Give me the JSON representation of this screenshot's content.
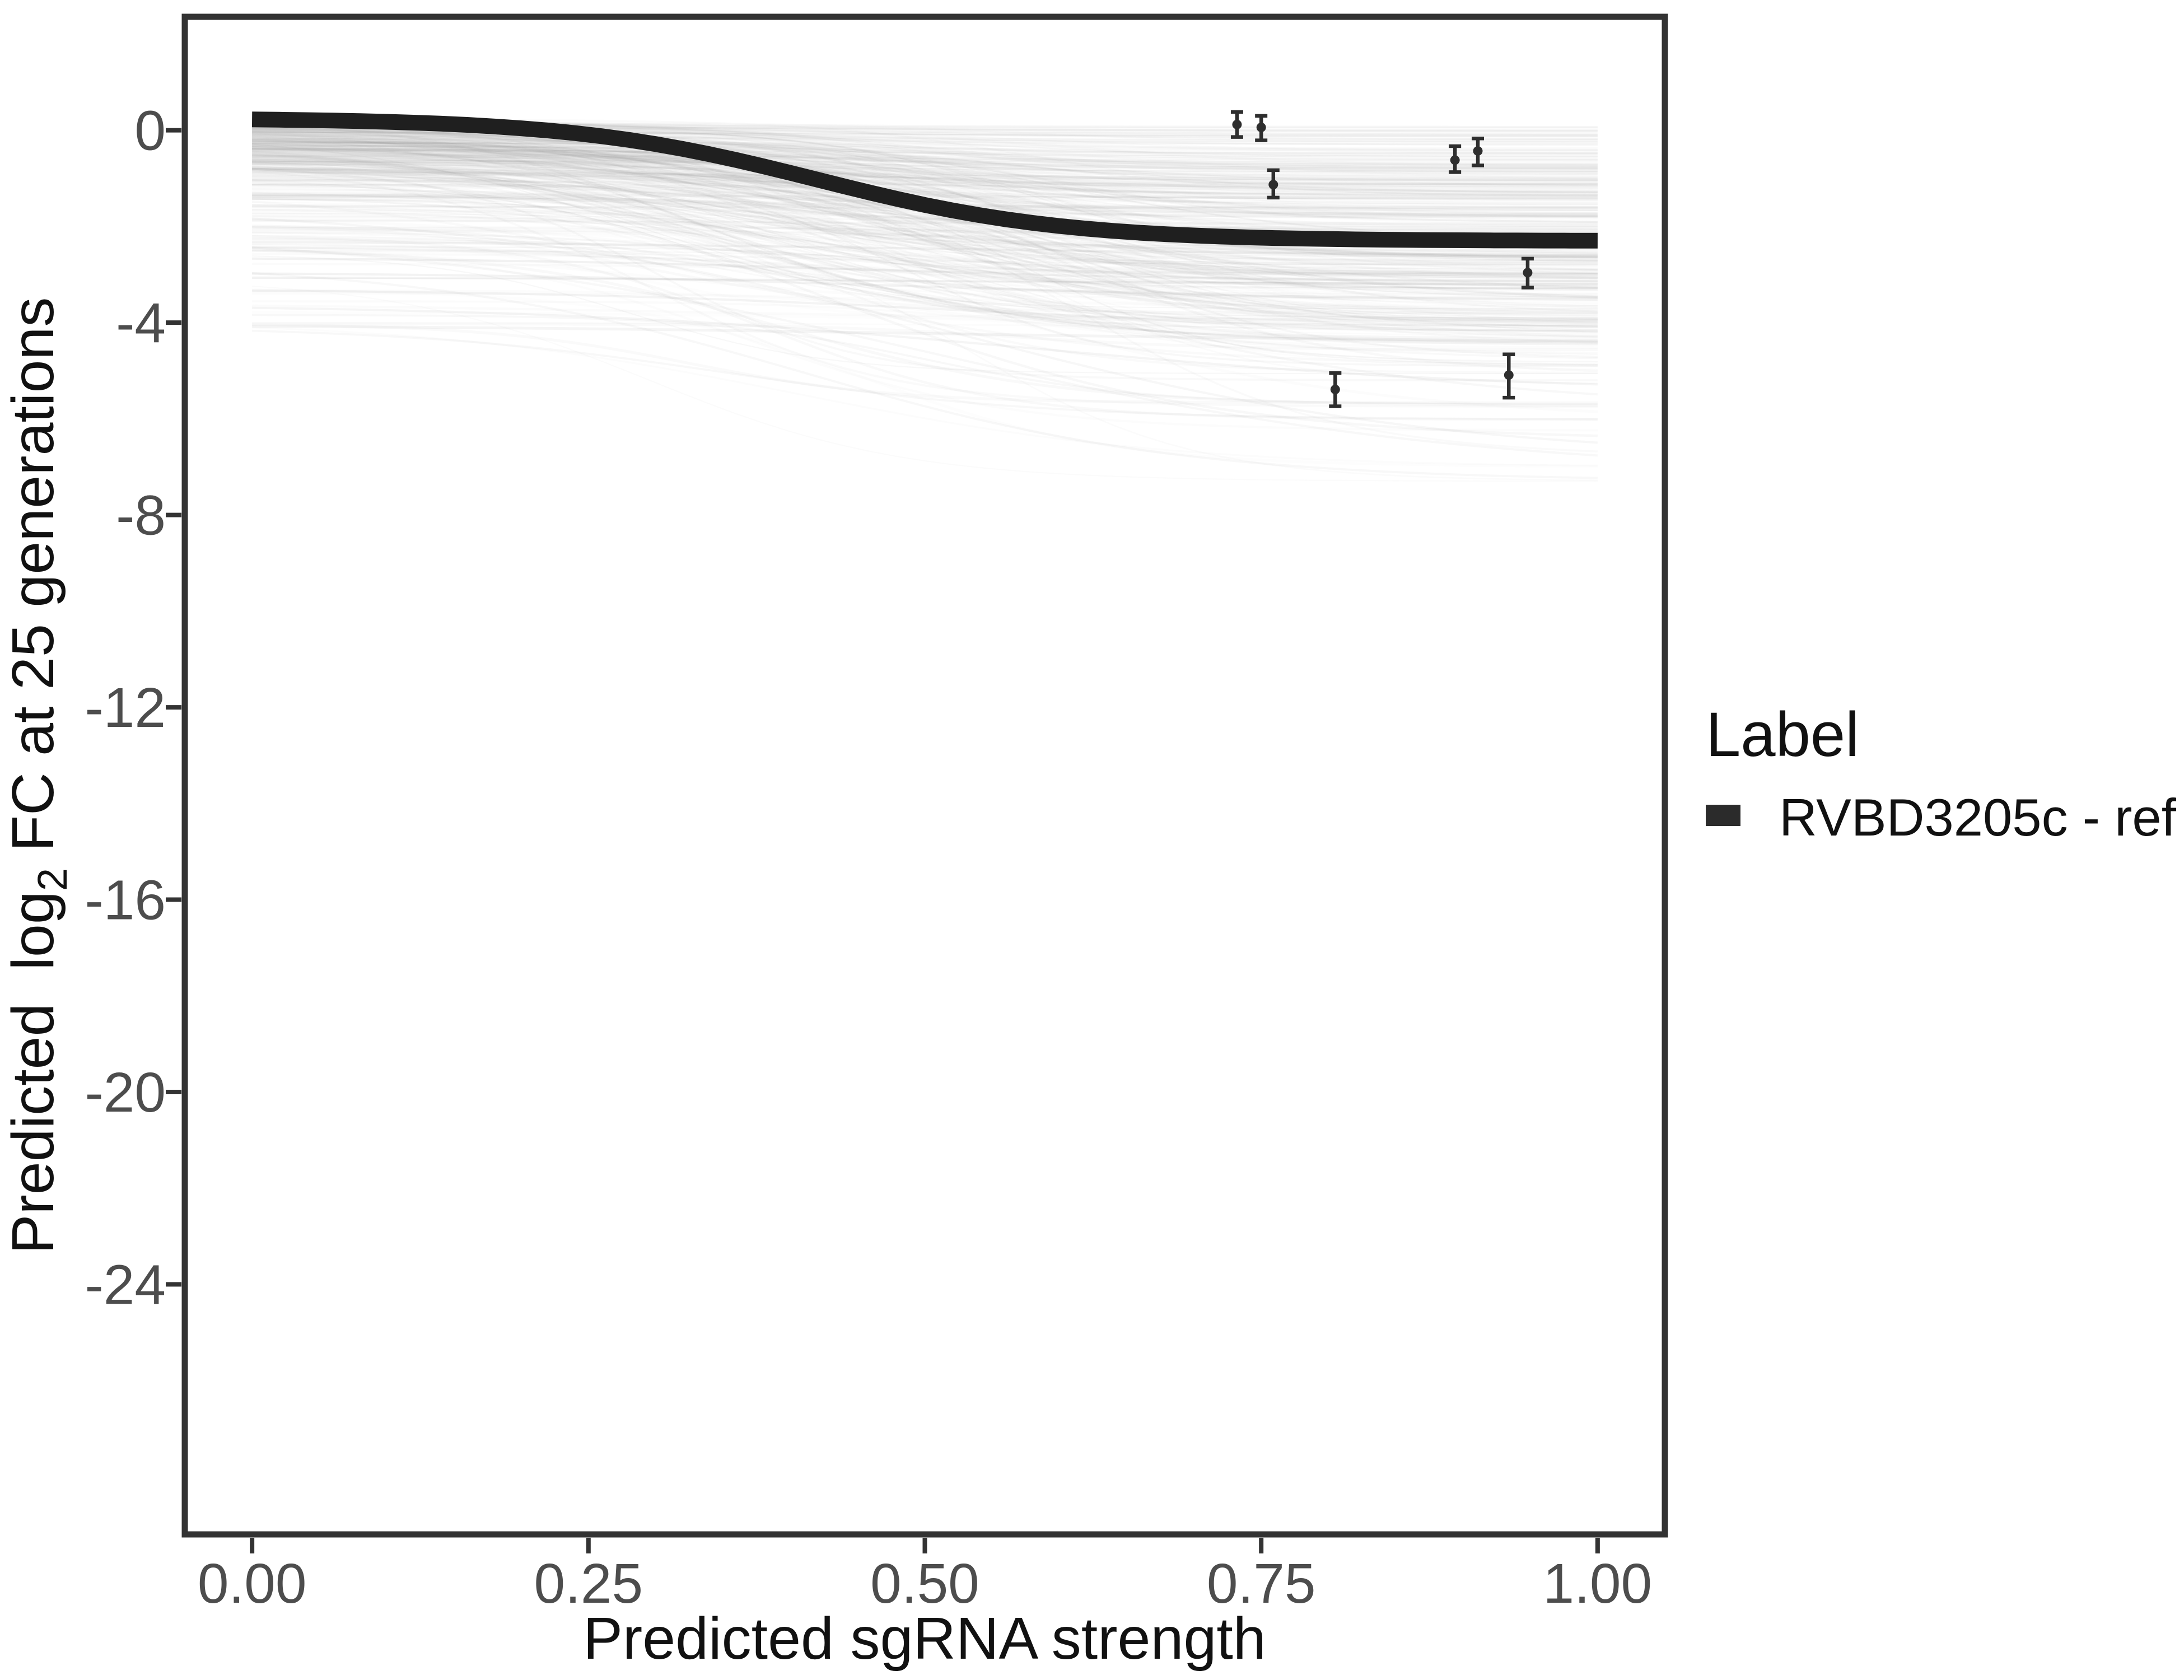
{
  "chart_data": {
    "type": "line",
    "title": "",
    "xlabel": "Predicted sgRNA strength",
    "ylabel": {
      "prefix": "Predicted  log",
      "sub": "2",
      "suffix": " FC at 25 generations"
    },
    "xlim": [
      -0.05,
      1.05
    ],
    "ylim": [
      -29.2,
      2.36
    ],
    "grid": "off",
    "panel_border_color": "#333333",
    "x_ticks": {
      "values": [
        0.0,
        0.25,
        0.5,
        0.75,
        1.0
      ],
      "labels": [
        "0.00",
        "0.25",
        "0.50",
        "0.75",
        "1.00"
      ]
    },
    "y_ticks": {
      "values": [
        0,
        -4,
        -8,
        -12,
        -16,
        -20,
        -24
      ],
      "labels": [
        "0",
        "-4",
        "-8",
        "-12",
        "-16",
        "-20",
        "-24"
      ]
    },
    "legend": {
      "title": "Label",
      "position": "right",
      "entries": [
        {
          "label": "RVBD3205c - ref",
          "swatch_color": "#2b2b2b"
        }
      ]
    },
    "reference_curve": {
      "name": "RVBD3205c - ref",
      "color": "#1f1f1f",
      "stroke_width": 28,
      "shape": "logistic",
      "start_value": 0.25,
      "end_value": -2.3,
      "midpoint_x": 0.42,
      "steepness": 11,
      "x_range": [
        0,
        1
      ]
    },
    "error_bar_points": [
      {
        "x": 0.732,
        "y": 0.12,
        "lo": -0.14,
        "hi": 0.38
      },
      {
        "x": 0.75,
        "y": 0.06,
        "lo": -0.21,
        "hi": 0.3
      },
      {
        "x": 0.759,
        "y": -1.13,
        "lo": -1.4,
        "hi": -0.83
      },
      {
        "x": 0.894,
        "y": -0.62,
        "lo": -0.87,
        "hi": -0.33
      },
      {
        "x": 0.911,
        "y": -0.43,
        "lo": -0.73,
        "hi": -0.17
      },
      {
        "x": 0.948,
        "y": -2.96,
        "lo": -3.27,
        "hi": -2.67
      },
      {
        "x": 0.805,
        "y": -5.39,
        "lo": -5.74,
        "hi": -5.05
      },
      {
        "x": 0.934,
        "y": -5.09,
        "lo": -5.56,
        "hi": -4.66
      }
    ],
    "point_color": "#2e2e2e",
    "background_curves": {
      "description": "posterior draw curves, translucent gray sigmoids from x=0 to x=1",
      "count": 380,
      "seed": 13,
      "color": "#8f8f8f",
      "start_value_range": [
        0.25,
        -4.1
      ],
      "end_value_range": [
        0.2,
        -7.3
      ],
      "midpoint_range": [
        0.28,
        0.62
      ],
      "features": [
        {
          "s": -2.65,
          "e": -3.15,
          "x0": 0.46,
          "k": 7.0,
          "o": 0.13,
          "w": 4
        },
        {
          "s": -2.95,
          "e": -3.55,
          "x0": 0.5,
          "k": 6.0,
          "o": 0.12,
          "w": 4
        },
        {
          "s": -3.3,
          "e": -4.25,
          "x0": 0.55,
          "k": 6.0,
          "o": 0.11,
          "w": 4
        },
        {
          "s": -3.62,
          "e": -5.45,
          "x0": 0.58,
          "k": 5.5,
          "o": 0.1,
          "w": 4
        },
        {
          "s": -4.05,
          "e": -4.4,
          "x0": 0.5,
          "k": 5.0,
          "o": 0.1,
          "w": 5
        },
        {
          "s": -1.55,
          "e": -6.85,
          "x0": 0.52,
          "k": 5.5,
          "o": 0.08,
          "w": 4
        },
        {
          "s": -2.05,
          "e": -7.15,
          "x0": 0.5,
          "k": 5.0,
          "o": 0.07,
          "w": 4
        },
        {
          "s": -0.9,
          "e": -5.8,
          "x0": 0.55,
          "k": 6.0,
          "o": 0.07,
          "w": 4
        },
        {
          "s": -2.3,
          "e": -2.62,
          "x0": 0.5,
          "k": 5.0,
          "o": 0.12,
          "w": 4
        },
        {
          "s": -3.05,
          "e": -3.22,
          "x0": 0.5,
          "k": 5.0,
          "o": 0.1,
          "w": 4
        }
      ]
    }
  }
}
